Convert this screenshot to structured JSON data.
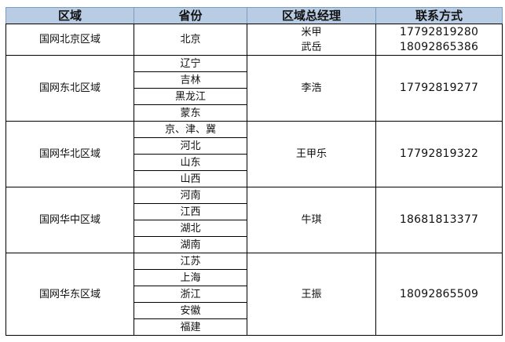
{
  "headers": [
    "区域",
    "省份",
    "区域总经理",
    "联系方式"
  ],
  "colors": {
    "header_bg": "#b8cce4",
    "border": "#000000"
  },
  "regions": [
    {
      "name": "国网北京区域",
      "provinces": [
        "北京"
      ],
      "managers": [
        "米甲",
        "武岳"
      ],
      "phones": [
        "17792819280",
        "18092865386"
      ]
    },
    {
      "name": "国网东北区域",
      "provinces": [
        "辽宁",
        "吉林",
        "黑龙江",
        "蒙东"
      ],
      "managers": [
        "李浩"
      ],
      "phones": [
        "17792819277"
      ]
    },
    {
      "name": "国网华北区域",
      "provinces": [
        "京、津、冀",
        "河北",
        "山东",
        "山西"
      ],
      "managers": [
        "王甲乐"
      ],
      "phones": [
        "17792819322"
      ]
    },
    {
      "name": "国网华中区域",
      "provinces": [
        "河南",
        "江西",
        "湖北",
        "湖南"
      ],
      "managers": [
        "牛琪"
      ],
      "phones": [
        "18681813377"
      ]
    },
    {
      "name": "国网华东区域",
      "provinces": [
        "江苏",
        "上海",
        "浙江",
        "安徽",
        "福建"
      ],
      "managers": [
        "王振"
      ],
      "phones": [
        "18092865509"
      ]
    }
  ]
}
